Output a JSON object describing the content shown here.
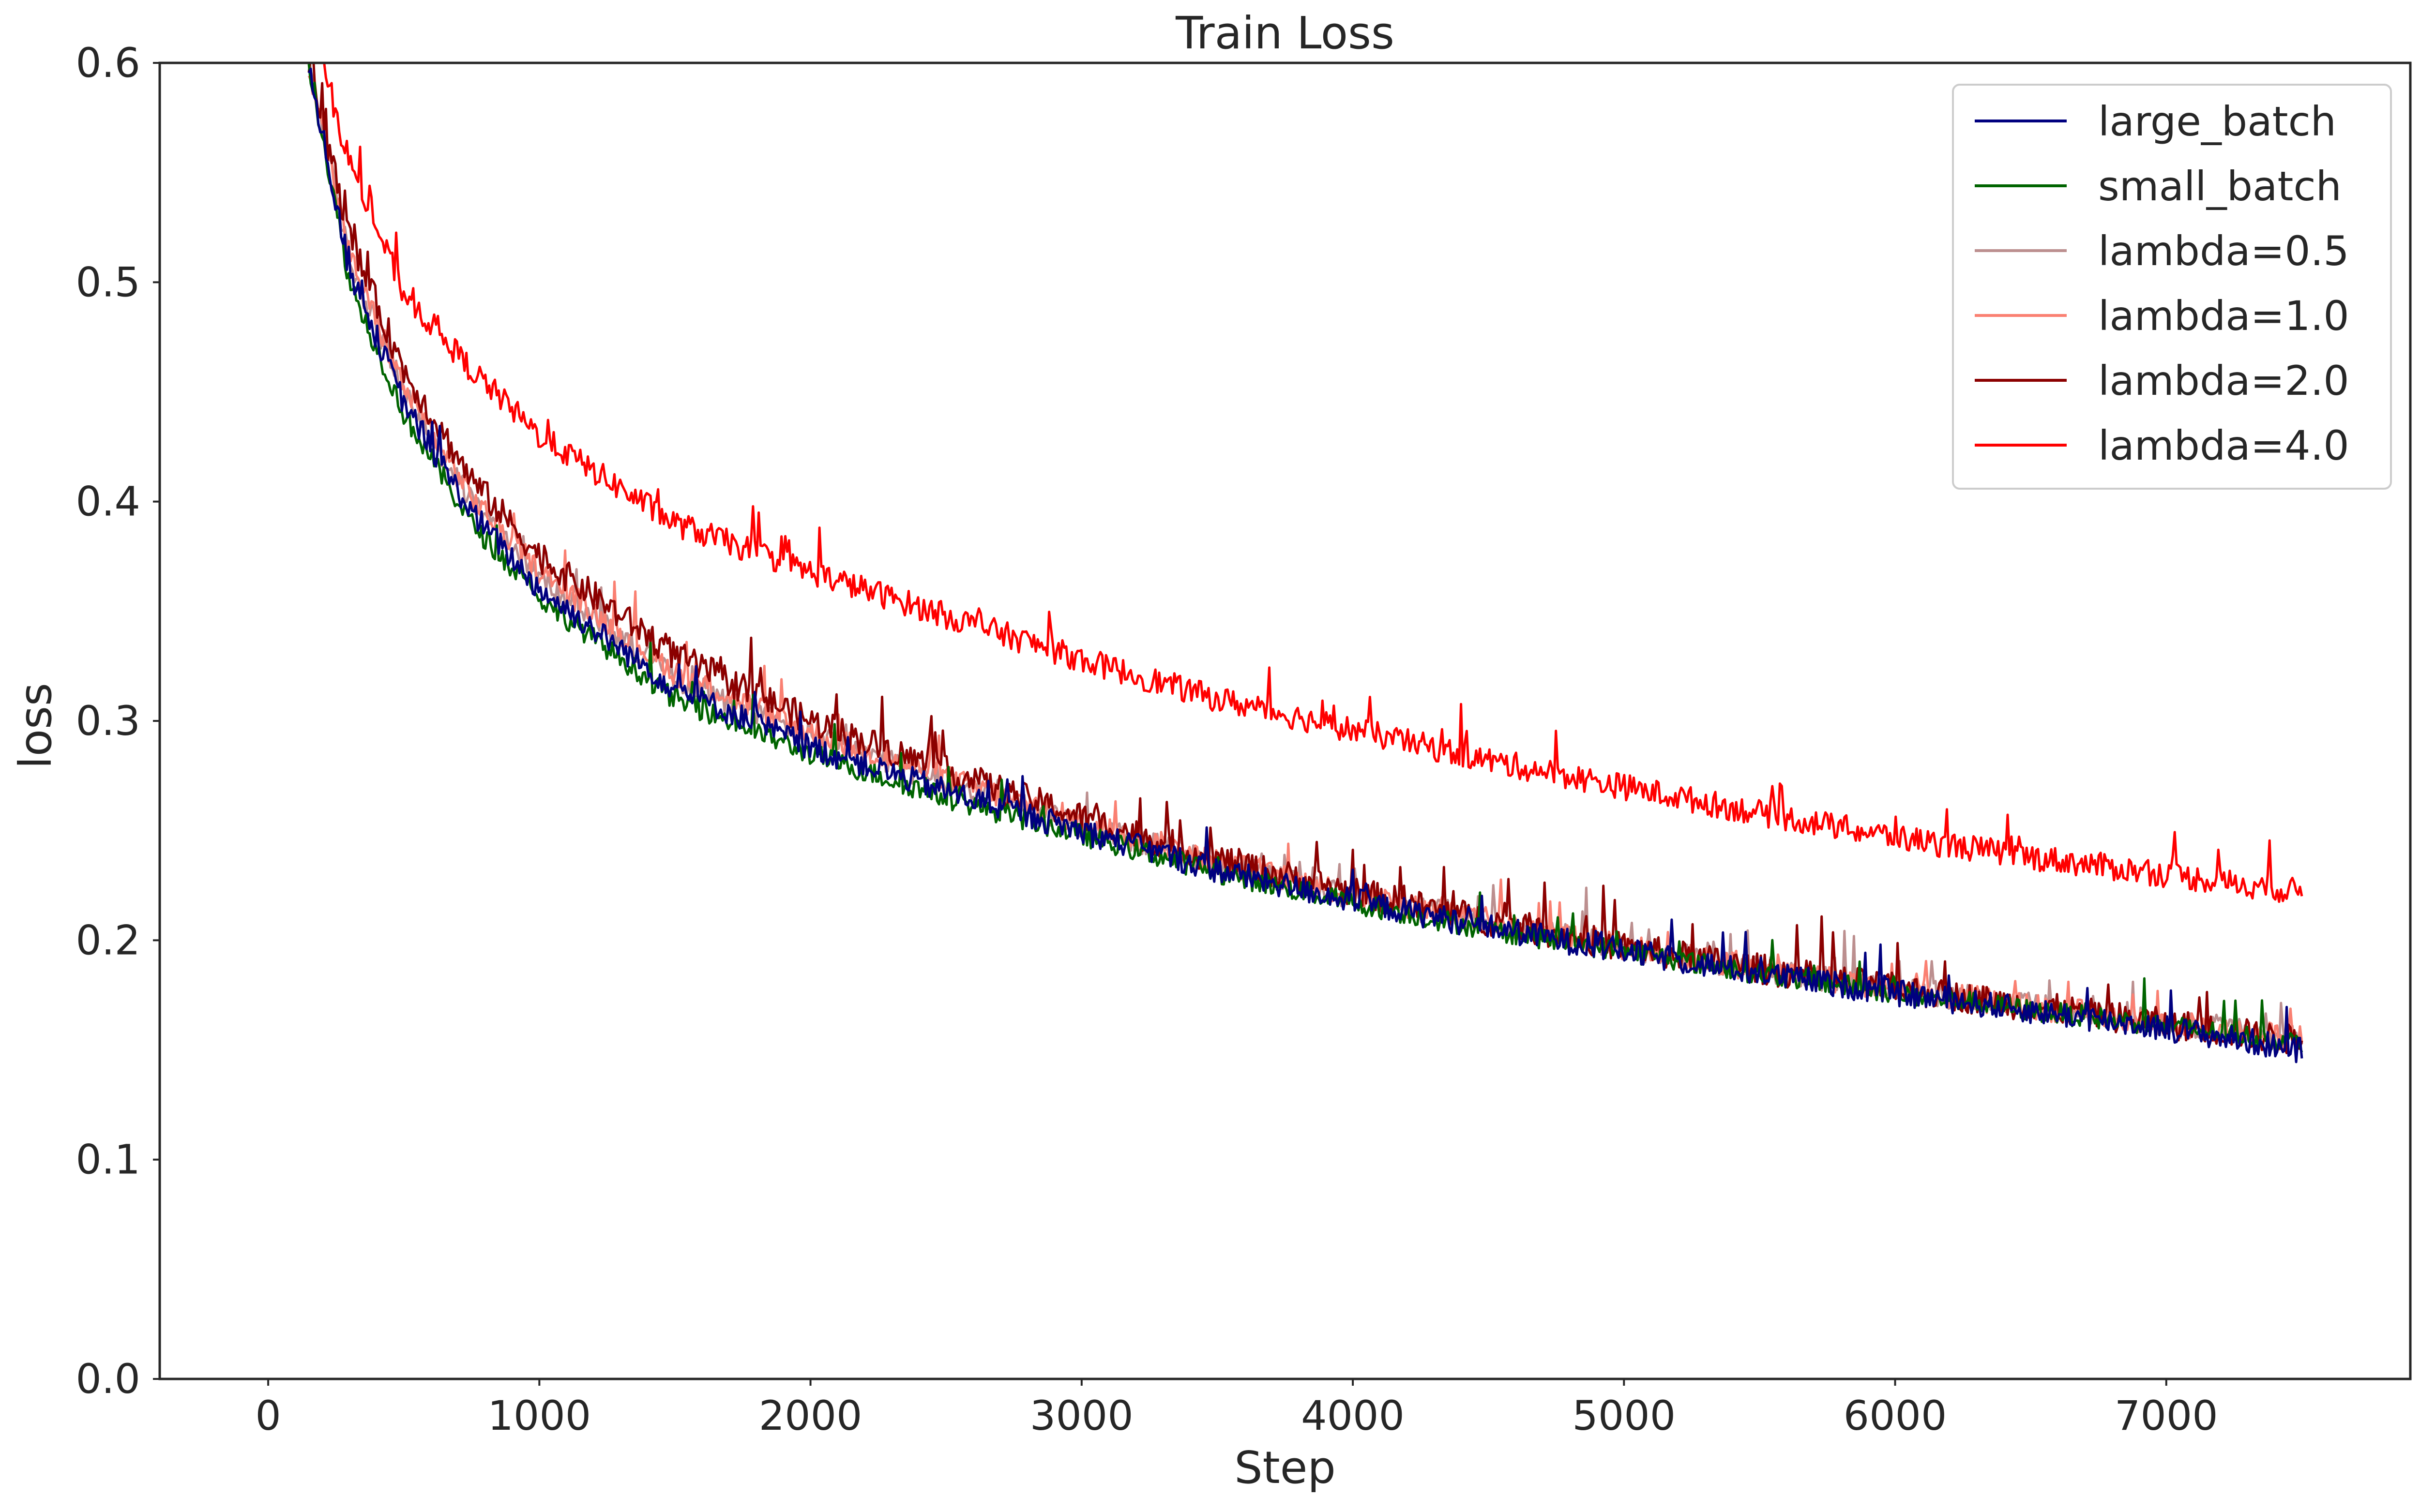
{
  "chart_data": {
    "type": "line",
    "title": "Train Loss",
    "xlabel": "Step",
    "ylabel": "loss",
    "xlim": [
      -400,
      7900
    ],
    "ylim": [
      0.0,
      0.6
    ],
    "xticks": [
      0,
      1000,
      2000,
      3000,
      4000,
      5000,
      6000,
      7000
    ],
    "xtick_labels": [
      "0",
      "1000",
      "2000",
      "3000",
      "4000",
      "5000",
      "6000",
      "7000"
    ],
    "yticks": [
      0.0,
      0.1,
      0.2,
      0.3,
      0.4,
      0.5,
      0.6
    ],
    "ytick_labels": [
      "0.0",
      "0.1",
      "0.2",
      "0.3",
      "0.4",
      "0.5",
      "0.6"
    ],
    "grid": false,
    "legend_position": "top-right",
    "x": [
      150,
      300,
      500,
      750,
      1000,
      1500,
      2000,
      2500,
      3000,
      3500,
      4000,
      4500,
      5000,
      5500,
      6000,
      6500,
      7000,
      7500
    ],
    "series": [
      {
        "name": "large_batch",
        "color": "#00007f",
        "values": [
          0.6,
          0.505,
          0.445,
          0.395,
          0.36,
          0.315,
          0.288,
          0.268,
          0.25,
          0.232,
          0.218,
          0.206,
          0.195,
          0.185,
          0.176,
          0.168,
          0.16,
          0.15
        ]
      },
      {
        "name": "small_batch",
        "color": "#006400",
        "values": [
          0.6,
          0.5,
          0.44,
          0.39,
          0.356,
          0.31,
          0.285,
          0.265,
          0.248,
          0.231,
          0.217,
          0.205,
          0.195,
          0.185,
          0.176,
          0.168,
          0.161,
          0.153
        ]
      },
      {
        "name": "lambda=0.5",
        "color": "#bc8f8f",
        "values": [
          0.6,
          0.51,
          0.45,
          0.4,
          0.365,
          0.32,
          0.293,
          0.272,
          0.253,
          0.235,
          0.22,
          0.208,
          0.197,
          0.187,
          0.178,
          0.17,
          0.162,
          0.155
        ]
      },
      {
        "name": "lambda=1.0",
        "color": "#fa8072",
        "values": [
          0.6,
          0.512,
          0.452,
          0.402,
          0.368,
          0.322,
          0.295,
          0.274,
          0.254,
          0.236,
          0.221,
          0.209,
          0.197,
          0.187,
          0.178,
          0.17,
          0.162,
          0.155
        ]
      },
      {
        "name": "lambda=2.0",
        "color": "#8b0000",
        "values": [
          0.6,
          0.52,
          0.46,
          0.41,
          0.375,
          0.33,
          0.3,
          0.277,
          0.256,
          0.237,
          0.222,
          0.209,
          0.197,
          0.187,
          0.178,
          0.17,
          0.162,
          0.154
        ]
      },
      {
        "name": "lambda=4.0",
        "color": "#ff0000",
        "values": [
          0.62,
          0.555,
          0.495,
          0.46,
          0.43,
          0.39,
          0.368,
          0.348,
          0.328,
          0.31,
          0.296,
          0.282,
          0.27,
          0.258,
          0.247,
          0.238,
          0.23,
          0.222
        ]
      }
    ]
  }
}
